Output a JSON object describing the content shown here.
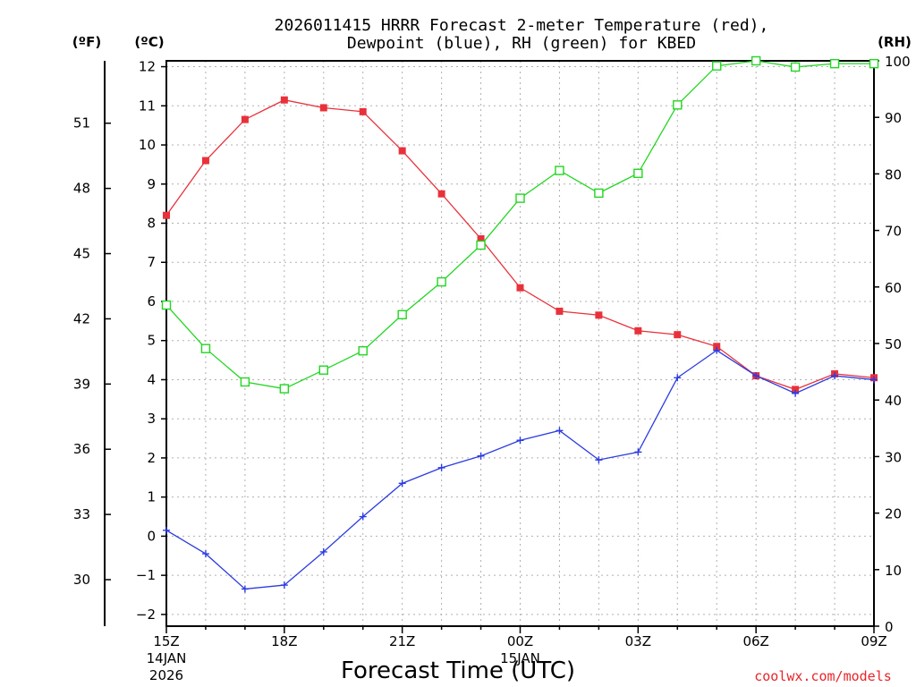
{
  "chart_data": {
    "type": "line",
    "title_line1": "2026011415 HRRR Forecast 2-meter Temperature (red),",
    "title_line2": "Dewpoint (blue), RH (green) for KBED",
    "xlabel": "Forecast Time (UTC)",
    "credit": "coolwx.com/models",
    "units": {
      "fahrenheit": "(ºF)",
      "celsius": "(ºC)",
      "rh": "(RH)"
    },
    "x_range": [
      15,
      33
    ],
    "celsius_range": [
      -2.3,
      12.15
    ],
    "rh_range": [
      0,
      100
    ],
    "x_ticks": [
      {
        "x": 15,
        "label": "15Z",
        "sub1": "14JAN",
        "sub2": "2026"
      },
      {
        "x": 18,
        "label": "18Z",
        "sub1": "",
        "sub2": ""
      },
      {
        "x": 21,
        "label": "21Z",
        "sub1": "",
        "sub2": ""
      },
      {
        "x": 24,
        "label": "00Z",
        "sub1": "15JAN",
        "sub2": ""
      },
      {
        "x": 27,
        "label": "03Z",
        "sub1": "",
        "sub2": ""
      },
      {
        "x": 30,
        "label": "06Z",
        "sub1": "",
        "sub2": ""
      },
      {
        "x": 33,
        "label": "09Z",
        "sub1": "",
        "sub2": ""
      }
    ],
    "celsius_ticks": [
      -2,
      -1,
      0,
      1,
      2,
      3,
      4,
      5,
      6,
      7,
      8,
      9,
      10,
      11,
      12
    ],
    "fahrenheit_ticks": [
      30,
      33,
      36,
      39,
      42,
      45,
      48,
      51
    ],
    "rh_ticks": [
      0,
      10,
      20,
      30,
      40,
      50,
      60,
      70,
      80,
      90,
      100
    ],
    "hours": [
      15,
      16,
      17,
      18,
      19,
      20,
      21,
      22,
      23,
      24,
      25,
      26,
      27,
      28,
      29,
      30,
      31,
      32,
      33
    ],
    "series": [
      {
        "name": "Temperature",
        "color": "#e8313a",
        "marker": "filled-square",
        "values": [
          8.2,
          9.6,
          10.65,
          11.15,
          10.95,
          10.85,
          9.85,
          8.75,
          7.6,
          6.35,
          5.75,
          5.65,
          5.25,
          5.15,
          4.85,
          4.1,
          3.75,
          4.15,
          4.05
        ]
      },
      {
        "name": "Dewpoint",
        "color": "#2c3ce0",
        "marker": "plus",
        "values": [
          0.15,
          -0.45,
          -1.35,
          -1.25,
          -0.4,
          0.5,
          1.35,
          1.75,
          2.05,
          2.45,
          2.7,
          1.95,
          2.15,
          4.05,
          4.75,
          4.1,
          3.65,
          4.1,
          4.0
        ]
      },
      {
        "name": "RH",
        "color": "#22d622",
        "marker": "open-square",
        "values": [
          56.8,
          49.1,
          43.2,
          42.0,
          45.3,
          48.7,
          55.1,
          60.9,
          67.4,
          75.7,
          80.6,
          76.6,
          80.1,
          92.2,
          99.1,
          100.0,
          98.9,
          99.5,
          99.5
        ]
      }
    ]
  }
}
